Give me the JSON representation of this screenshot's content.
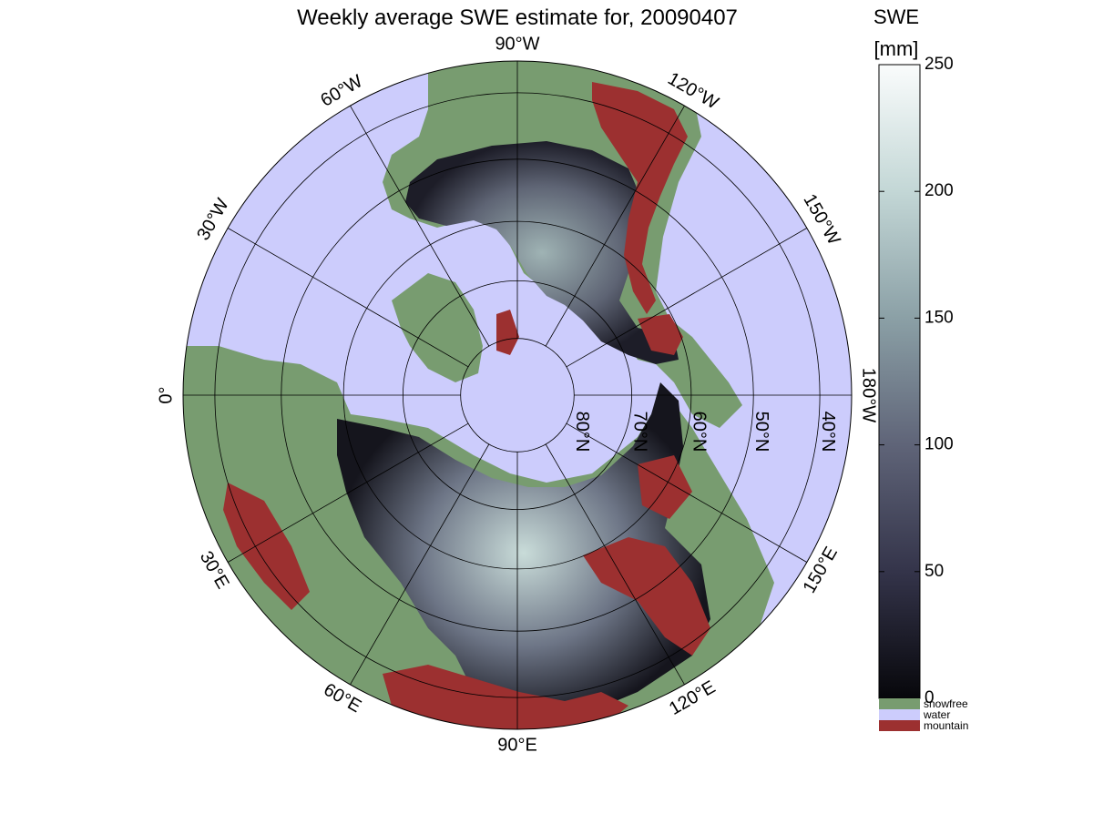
{
  "title": "Weekly average SWE estimate for, 20090407",
  "colorbar": {
    "label_line1": "SWE",
    "label_line2": "[mm]",
    "range": [
      0,
      250
    ],
    "ticks": [
      0,
      50,
      100,
      150,
      200,
      250
    ],
    "gradient_stops": [
      {
        "value": 0,
        "color": "#07070b"
      },
      {
        "value": 50,
        "color": "#34344a"
      },
      {
        "value": 100,
        "color": "#5f6478"
      },
      {
        "value": 150,
        "color": "#8ba0a6"
      },
      {
        "value": 200,
        "color": "#c3d7d6"
      },
      {
        "value": 250,
        "color": "#fafcfc"
      }
    ]
  },
  "legend": [
    {
      "label": "snowfree",
      "color": "#789c70"
    },
    {
      "label": "water",
      "color": "#ccccfc"
    },
    {
      "label": "mountain",
      "color": "#9c3030"
    }
  ],
  "map": {
    "projection": "north polar stereographic",
    "ocean_color": "#ccccfc",
    "land_color": "#789c70",
    "mountain_color": "#9c3030",
    "snow_low_color": "#1b1b24",
    "snow_high_color": "#e8f2f0",
    "latitude_circles": [
      40,
      50,
      60,
      70,
      80
    ],
    "meridians_deg": [
      0,
      30,
      60,
      90,
      120,
      150,
      180,
      210,
      240,
      270,
      300,
      330
    ],
    "meridian_labels": [
      {
        "text": "90°W"
      },
      {
        "text": "120°W"
      },
      {
        "text": "150°W"
      },
      {
        "text": "180°W"
      },
      {
        "text": "150°E"
      },
      {
        "text": "120°E"
      },
      {
        "text": "90°E"
      },
      {
        "text": "60°E"
      },
      {
        "text": "30°E"
      },
      {
        "text": "0°"
      },
      {
        "text": "30°W"
      },
      {
        "text": "60°W"
      }
    ],
    "latitude_labels": [
      {
        "text": "80°N"
      },
      {
        "text": "70°N"
      },
      {
        "text": "60°N"
      },
      {
        "text": "50°N"
      },
      {
        "text": "40°N"
      }
    ]
  }
}
